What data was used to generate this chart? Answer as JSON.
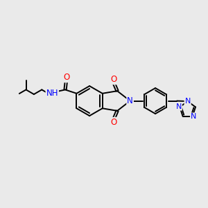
{
  "background_color": "#eaeaea",
  "bond_color": "#000000",
  "bond_width": 1.4,
  "atom_colors": {
    "O": "#ff0000",
    "N": "#0000ff",
    "H": "#008080",
    "C": "#000000"
  },
  "font_size": 8.5,
  "fig_width": 3.0,
  "fig_height": 3.0,
  "dpi": 100,
  "xlim": [
    0,
    10
  ],
  "ylim": [
    0,
    10
  ]
}
